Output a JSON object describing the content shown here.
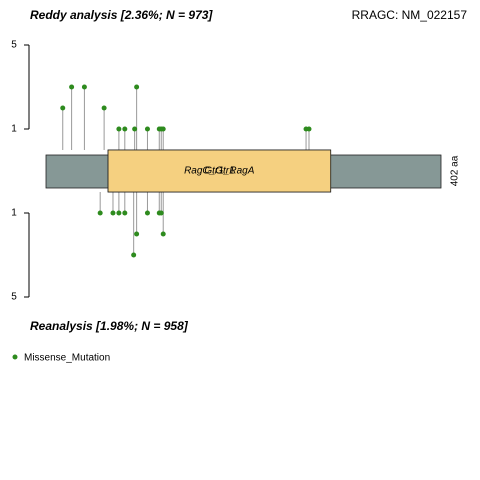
{
  "chart_data": {
    "type": "lollipop",
    "title": "RRAGC: NM_022157",
    "length": 402,
    "length_label": "402 aa",
    "domains": [
      {
        "name": "RagC_Gtr1",
        "start": 64,
        "end": 290
      },
      {
        "name": "Gtr1_RagA",
        "start": 64,
        "end": 290
      }
    ],
    "color": "#2e8b1e",
    "ylim": [
      0,
      5
    ],
    "yticks": [
      1,
      5
    ],
    "legend": "Missense_Mutation",
    "top": {
      "title": "Reddy analysis [2.36%; N = 973]",
      "positions": [
        18,
        27,
        40,
        60,
        75,
        81,
        91,
        93,
        104,
        116,
        118,
        120,
        265,
        268
      ],
      "counts": [
        2,
        3,
        3,
        2,
        1,
        1,
        1,
        3,
        1,
        1,
        1,
        1,
        1,
        1
      ]
    },
    "bottom": {
      "title": "Reanalysis [1.98%; N = 958]",
      "positions": [
        56,
        69,
        75,
        81,
        90,
        93,
        104,
        116,
        118,
        120
      ],
      "counts": [
        1,
        1,
        1,
        1,
        3,
        2,
        1,
        1,
        1,
        2
      ]
    }
  }
}
